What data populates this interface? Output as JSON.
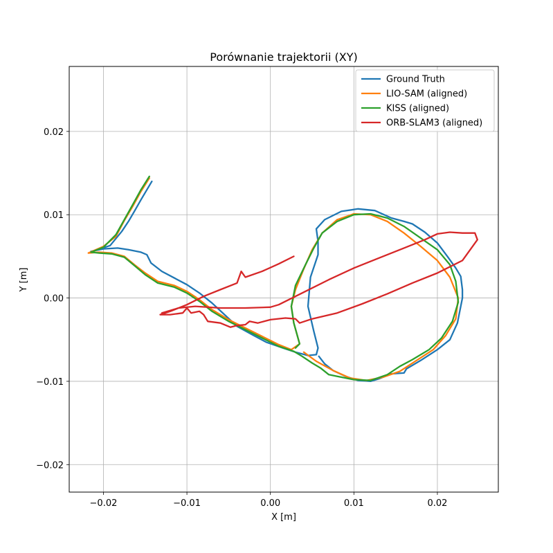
{
  "chart_data": {
    "type": "line",
    "title": "Porównanie trajektorii (XY)",
    "xlabel": "X [m]",
    "ylabel": "Y [m]",
    "xlim": [
      -0.0241,
      0.0273
    ],
    "ylim": [
      -0.0233,
      0.0278
    ],
    "x_ticks": [
      -0.02,
      -0.01,
      0.0,
      0.01,
      0.02
    ],
    "x_tick_labels": [
      "−0.02",
      "−0.01",
      "0.00",
      "0.01",
      "0.02"
    ],
    "y_ticks": [
      -0.02,
      -0.01,
      0.0,
      0.01,
      0.02
    ],
    "y_tick_labels": [
      "−0.02",
      "−0.01",
      "0.00",
      "0.01",
      "0.02"
    ],
    "grid": true,
    "legend_position": "top-right",
    "series": [
      {
        "name": "Ground Truth",
        "color": "#1f77b4",
        "points": [
          [
            -0.0142,
            0.014
          ],
          [
            -0.0155,
            0.0118
          ],
          [
            -0.0163,
            0.0104
          ],
          [
            -0.017,
            0.0092
          ],
          [
            -0.0178,
            0.008
          ],
          [
            -0.0192,
            0.0063
          ],
          [
            -0.021,
            0.0057
          ],
          [
            -0.0215,
            0.0056
          ],
          [
            -0.02,
            0.0059
          ],
          [
            -0.0183,
            0.006
          ],
          [
            -0.017,
            0.0058
          ],
          [
            -0.0155,
            0.0055
          ],
          [
            -0.0148,
            0.0052
          ],
          [
            -0.0143,
            0.0042
          ],
          [
            -0.013,
            0.0032
          ],
          [
            -0.0115,
            0.0024
          ],
          [
            -0.01,
            0.0016
          ],
          [
            -0.0085,
            0.0006
          ],
          [
            -0.007,
            -0.0006
          ],
          [
            -0.0055,
            -0.002
          ],
          [
            -0.004,
            -0.0034
          ],
          [
            -0.002,
            -0.0045
          ],
          [
            -0.0005,
            -0.0053
          ],
          [
            0.0015,
            -0.006
          ],
          [
            0.003,
            -0.0065
          ],
          [
            0.0045,
            -0.0069
          ],
          [
            0.0055,
            -0.0068
          ],
          [
            0.0057,
            -0.006
          ],
          [
            0.0052,
            -0.004
          ],
          [
            0.0045,
            -0.001
          ],
          [
            0.0048,
            0.0025
          ],
          [
            0.0057,
            0.0052
          ],
          [
            0.0057,
            0.0068
          ],
          [
            0.0055,
            0.0083
          ],
          [
            0.0065,
            0.0094
          ],
          [
            0.0085,
            0.0104
          ],
          [
            0.0105,
            0.0107
          ],
          [
            0.0125,
            0.0105
          ],
          [
            0.0145,
            0.0096
          ],
          [
            0.016,
            0.0092
          ],
          [
            0.017,
            0.0089
          ],
          [
            0.0185,
            0.0079
          ],
          [
            0.02,
            0.0066
          ],
          [
            0.0212,
            0.005
          ],
          [
            0.0222,
            0.0036
          ],
          [
            0.0228,
            0.0026
          ],
          [
            0.023,
            0.001
          ],
          [
            0.023,
            0.0
          ],
          [
            0.0224,
            -0.003
          ],
          [
            0.0215,
            -0.005
          ],
          [
            0.02,
            -0.0062
          ],
          [
            0.018,
            -0.0075
          ],
          [
            0.0163,
            -0.0085
          ],
          [
            0.016,
            -0.009
          ],
          [
            0.0145,
            -0.0091
          ],
          [
            0.013,
            -0.0097
          ],
          [
            0.012,
            -0.01
          ],
          [
            0.0105,
            -0.0099
          ],
          [
            0.009,
            -0.0094
          ],
          [
            0.0075,
            -0.0087
          ],
          [
            0.0065,
            -0.0079
          ],
          [
            0.0058,
            -0.007
          ]
        ]
      },
      {
        "name": "LIO-SAM (aligned)",
        "color": "#ff7f0e",
        "points": [
          [
            -0.0145,
            0.0144
          ],
          [
            -0.0155,
            0.0128
          ],
          [
            -0.0165,
            0.011
          ],
          [
            -0.0175,
            0.0093
          ],
          [
            -0.0185,
            0.0074
          ],
          [
            -0.02,
            0.0062
          ],
          [
            -0.0218,
            0.0054
          ],
          [
            -0.0205,
            0.0055
          ],
          [
            -0.019,
            0.0054
          ],
          [
            -0.0175,
            0.005
          ],
          [
            -0.0163,
            0.004
          ],
          [
            -0.015,
            0.003
          ],
          [
            -0.0135,
            0.002
          ],
          [
            -0.0115,
            0.0015
          ],
          [
            -0.01,
            0.0008
          ],
          [
            -0.0085,
            -0.0002
          ],
          [
            -0.007,
            -0.0014
          ],
          [
            -0.005,
            -0.0026
          ],
          [
            -0.003,
            -0.0036
          ],
          [
            -0.001,
            -0.0046
          ],
          [
            0.001,
            -0.0056
          ],
          [
            0.0025,
            -0.0062
          ],
          [
            0.0035,
            -0.0055
          ],
          [
            0.0028,
            -0.003
          ],
          [
            0.0025,
            -0.001
          ],
          [
            0.003,
            0.001
          ],
          [
            0.004,
            0.0035
          ],
          [
            0.005,
            0.0058
          ],
          [
            0.0062,
            0.0078
          ],
          [
            0.008,
            0.0094
          ],
          [
            0.01,
            0.0101
          ],
          [
            0.012,
            0.01
          ],
          [
            0.014,
            0.0092
          ],
          [
            0.016,
            0.0078
          ],
          [
            0.018,
            0.0062
          ],
          [
            0.02,
            0.0045
          ],
          [
            0.0215,
            0.0025
          ],
          [
            0.0225,
            0.0
          ],
          [
            0.0222,
            -0.0025
          ],
          [
            0.021,
            -0.0045
          ],
          [
            0.0195,
            -0.0062
          ],
          [
            0.0175,
            -0.0075
          ],
          [
            0.0155,
            -0.0088
          ],
          [
            0.0135,
            -0.0095
          ],
          [
            0.0115,
            -0.0099
          ],
          [
            0.0095,
            -0.0096
          ],
          [
            0.0075,
            -0.0087
          ],
          [
            0.0055,
            -0.0076
          ],
          [
            0.004,
            -0.0065
          ]
        ]
      },
      {
        "name": "KISS (aligned)",
        "color": "#2ca02c",
        "points": [
          [
            -0.0145,
            0.0146
          ],
          [
            -0.0155,
            0.013
          ],
          [
            -0.0165,
            0.0112
          ],
          [
            -0.0175,
            0.0094
          ],
          [
            -0.0185,
            0.0076
          ],
          [
            -0.02,
            0.0061
          ],
          [
            -0.0215,
            0.0055
          ],
          [
            -0.0205,
            0.0054
          ],
          [
            -0.019,
            0.0053
          ],
          [
            -0.0175,
            0.0049
          ],
          [
            -0.0163,
            0.0039
          ],
          [
            -0.015,
            0.0028
          ],
          [
            -0.0135,
            0.0018
          ],
          [
            -0.0115,
            0.0013
          ],
          [
            -0.01,
            0.0006
          ],
          [
            -0.0085,
            -0.0004
          ],
          [
            -0.007,
            -0.0016
          ],
          [
            -0.005,
            -0.0028
          ],
          [
            -0.003,
            -0.0038
          ],
          [
            -0.001,
            -0.0048
          ],
          [
            0.001,
            -0.0058
          ],
          [
            0.0028,
            -0.0064
          ],
          [
            0.0038,
            -0.007
          ],
          [
            0.005,
            -0.0078
          ],
          [
            0.006,
            -0.0084
          ],
          [
            0.007,
            -0.0092
          ],
          [
            0.008,
            -0.0094
          ],
          [
            0.01,
            -0.0098
          ],
          [
            0.012,
            -0.0099
          ],
          [
            0.014,
            -0.0092
          ],
          [
            0.0155,
            -0.0082
          ],
          [
            0.017,
            -0.0074
          ],
          [
            0.019,
            -0.0062
          ],
          [
            0.0205,
            -0.0048
          ],
          [
            0.0218,
            -0.0028
          ],
          [
            0.0225,
            -0.0005
          ],
          [
            0.0222,
            0.002
          ],
          [
            0.0215,
            0.004
          ],
          [
            0.02,
            0.0058
          ],
          [
            0.018,
            0.0072
          ],
          [
            0.016,
            0.0086
          ],
          [
            0.014,
            0.0096
          ],
          [
            0.012,
            0.0101
          ],
          [
            0.01,
            0.01
          ],
          [
            0.008,
            0.0092
          ],
          [
            0.0062,
            0.0078
          ],
          [
            0.0052,
            0.006
          ],
          [
            0.0042,
            0.004
          ],
          [
            0.003,
            0.0015
          ],
          [
            0.0025,
            -0.001
          ],
          [
            0.0028,
            -0.003
          ],
          [
            0.0035,
            -0.0055
          ],
          [
            0.003,
            -0.006
          ]
        ]
      },
      {
        "name": "ORB-SLAM3 (aligned)",
        "color": "#d62728",
        "points": [
          [
            0.0028,
            0.005
          ],
          [
            0.001,
            0.0041
          ],
          [
            -0.001,
            0.0032
          ],
          [
            -0.003,
            0.0025
          ],
          [
            -0.0035,
            0.0032
          ],
          [
            -0.004,
            0.0018
          ],
          [
            -0.006,
            0.001
          ],
          [
            -0.008,
            0.0002
          ],
          [
            -0.01,
            -0.0008
          ],
          [
            -0.012,
            -0.0016
          ],
          [
            -0.0132,
            -0.002
          ],
          [
            -0.012,
            -0.002
          ],
          [
            -0.0105,
            -0.0018
          ],
          [
            -0.01,
            -0.0012
          ],
          [
            -0.0095,
            -0.0018
          ],
          [
            -0.0085,
            -0.0016
          ],
          [
            -0.008,
            -0.002
          ],
          [
            -0.0075,
            -0.0028
          ],
          [
            -0.006,
            -0.003
          ],
          [
            -0.0048,
            -0.0035
          ],
          [
            -0.004,
            -0.0033
          ],
          [
            -0.003,
            -0.0032
          ],
          [
            -0.0025,
            -0.0028
          ],
          [
            -0.0015,
            -0.003
          ],
          [
            0.0,
            -0.0026
          ],
          [
            0.0018,
            -0.0024
          ],
          [
            0.003,
            -0.0025
          ],
          [
            0.0035,
            -0.003
          ],
          [
            0.005,
            -0.0025
          ],
          [
            0.008,
            -0.0018
          ],
          [
            0.011,
            -0.0007
          ],
          [
            0.014,
            0.0005
          ],
          [
            0.017,
            0.0018
          ],
          [
            0.02,
            0.003
          ],
          [
            0.023,
            0.0045
          ],
          [
            0.0248,
            0.007
          ],
          [
            0.0245,
            0.0078
          ],
          [
            0.023,
            0.0078
          ],
          [
            0.0215,
            0.0079
          ],
          [
            0.02,
            0.0077
          ],
          [
            0.0185,
            0.007
          ],
          [
            0.016,
            0.006
          ],
          [
            0.013,
            0.0048
          ],
          [
            0.01,
            0.0036
          ],
          [
            0.007,
            0.0022
          ],
          [
            0.004,
            0.0007
          ],
          [
            0.001,
            -0.0008
          ],
          [
            0.0,
            -0.0011
          ],
          [
            -0.003,
            -0.0012
          ],
          [
            -0.006,
            -0.0012
          ],
          [
            -0.009,
            -0.001
          ],
          [
            -0.011,
            -0.0012
          ],
          [
            -0.013,
            -0.0018
          ]
        ]
      }
    ]
  }
}
